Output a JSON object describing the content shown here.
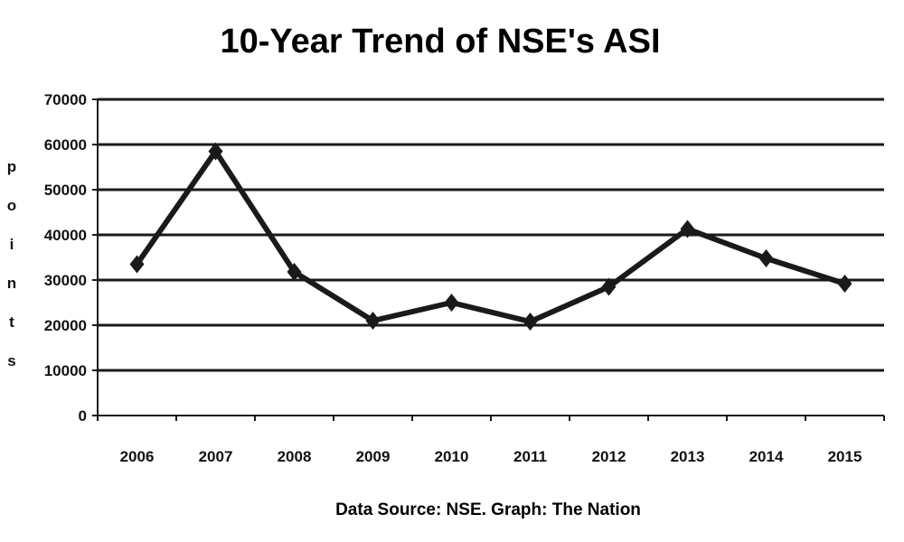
{
  "chart_data": {
    "type": "line",
    "title": "10-Year Trend of NSE's ASI",
    "ylabel": "points",
    "xlabel": "",
    "source": "Data Source: NSE. Graph: The Nation",
    "categories": [
      "2006",
      "2007",
      "2008",
      "2009",
      "2010",
      "2011",
      "2012",
      "2013",
      "2014",
      "2015"
    ],
    "series": [
      {
        "values": [
          33500,
          58500,
          31800,
          21000,
          25000,
          20800,
          28500,
          41300,
          34800,
          29200
        ]
      }
    ],
    "ylim": [
      0,
      70000
    ],
    "yticks": [
      0,
      10000,
      20000,
      30000,
      40000,
      50000,
      60000,
      70000
    ],
    "grid": true,
    "legend": "none",
    "marker": "diamond",
    "colors": {
      "line": "#1a1a1a",
      "grid": "#1a1a1a",
      "background": "#ffffff"
    }
  }
}
